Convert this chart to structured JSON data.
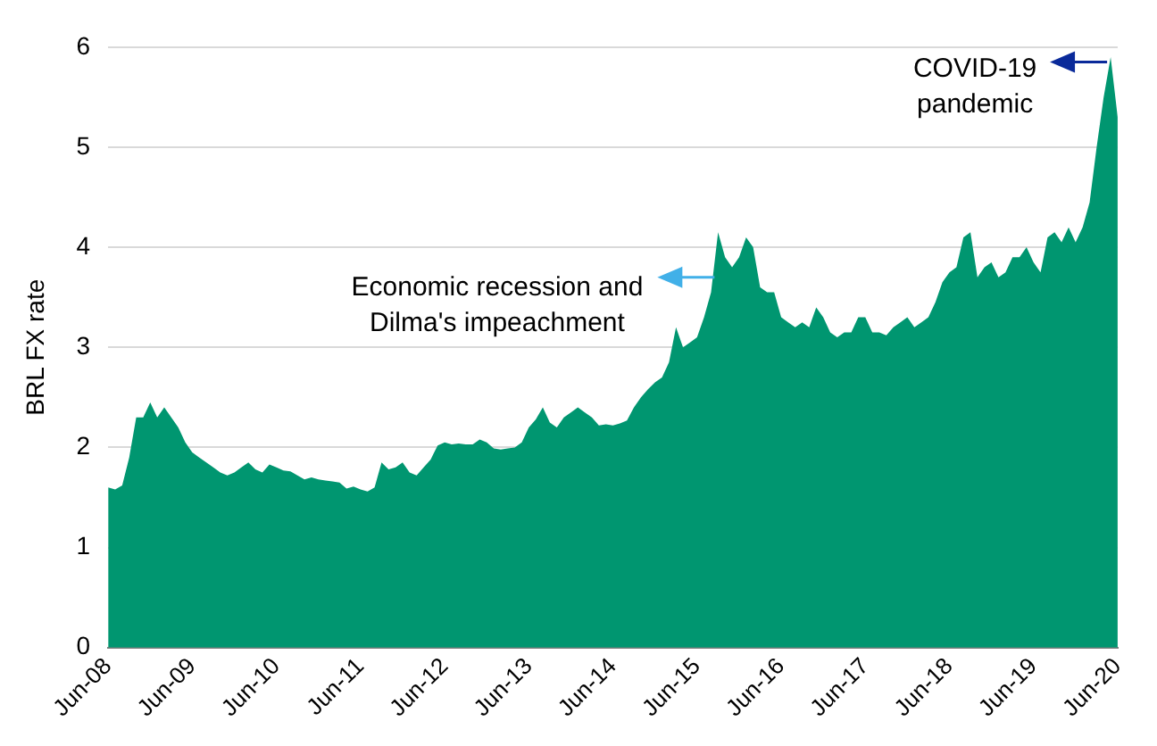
{
  "chart_data": {
    "type": "area",
    "ylabel": "BRL FX rate",
    "x": [
      "2008-06",
      "2008-07",
      "2008-08",
      "2008-09",
      "2008-10",
      "2008-11",
      "2008-12",
      "2009-01",
      "2009-02",
      "2009-03",
      "2009-04",
      "2009-05",
      "2009-06",
      "2009-07",
      "2009-08",
      "2009-09",
      "2009-10",
      "2009-11",
      "2009-12",
      "2010-01",
      "2010-02",
      "2010-03",
      "2010-04",
      "2010-05",
      "2010-06",
      "2010-07",
      "2010-08",
      "2010-09",
      "2010-10",
      "2010-11",
      "2010-12",
      "2011-01",
      "2011-02",
      "2011-03",
      "2011-04",
      "2011-05",
      "2011-06",
      "2011-07",
      "2011-08",
      "2011-09",
      "2011-10",
      "2011-11",
      "2011-12",
      "2012-01",
      "2012-02",
      "2012-03",
      "2012-04",
      "2012-05",
      "2012-06",
      "2012-07",
      "2012-08",
      "2012-09",
      "2012-10",
      "2012-11",
      "2012-12",
      "2013-01",
      "2013-02",
      "2013-03",
      "2013-04",
      "2013-05",
      "2013-06",
      "2013-07",
      "2013-08",
      "2013-09",
      "2013-10",
      "2013-11",
      "2013-12",
      "2014-01",
      "2014-02",
      "2014-03",
      "2014-04",
      "2014-05",
      "2014-06",
      "2014-07",
      "2014-08",
      "2014-09",
      "2014-10",
      "2014-11",
      "2014-12",
      "2015-01",
      "2015-02",
      "2015-03",
      "2015-04",
      "2015-05",
      "2015-06",
      "2015-07",
      "2015-08",
      "2015-09",
      "2015-10",
      "2015-11",
      "2015-12",
      "2016-01",
      "2016-02",
      "2016-03",
      "2016-04",
      "2016-05",
      "2016-06",
      "2016-07",
      "2016-08",
      "2016-09",
      "2016-10",
      "2016-11",
      "2016-12",
      "2017-01",
      "2017-02",
      "2017-03",
      "2017-04",
      "2017-05",
      "2017-06",
      "2017-07",
      "2017-08",
      "2017-09",
      "2017-10",
      "2017-11",
      "2017-12",
      "2018-01",
      "2018-02",
      "2018-03",
      "2018-04",
      "2018-05",
      "2018-06",
      "2018-07",
      "2018-08",
      "2018-09",
      "2018-10",
      "2018-11",
      "2018-12",
      "2019-01",
      "2019-02",
      "2019-03",
      "2019-04",
      "2019-05",
      "2019-06",
      "2019-07",
      "2019-08",
      "2019-09",
      "2019-10",
      "2019-11",
      "2019-12",
      "2020-01",
      "2020-02",
      "2020-03",
      "2020-04",
      "2020-05",
      "2020-06"
    ],
    "series": [
      {
        "color": "#009670",
        "values": [
          1.6,
          1.58,
          1.62,
          1.9,
          2.3,
          2.3,
          2.45,
          2.3,
          2.4,
          2.3,
          2.2,
          2.05,
          1.95,
          1.9,
          1.85,
          1.8,
          1.75,
          1.72,
          1.75,
          1.8,
          1.85,
          1.78,
          1.75,
          1.83,
          1.8,
          1.77,
          1.76,
          1.72,
          1.68,
          1.7,
          1.68,
          1.67,
          1.66,
          1.65,
          1.59,
          1.61,
          1.58,
          1.56,
          1.6,
          1.85,
          1.78,
          1.8,
          1.85,
          1.75,
          1.72,
          1.8,
          1.88,
          2.02,
          2.05,
          2.03,
          2.04,
          2.03,
          2.03,
          2.08,
          2.05,
          1.99,
          1.98,
          1.99,
          2.0,
          2.05,
          2.2,
          2.28,
          2.4,
          2.25,
          2.2,
          2.3,
          2.35,
          2.4,
          2.35,
          2.3,
          2.22,
          2.23,
          2.22,
          2.24,
          2.27,
          2.4,
          2.5,
          2.58,
          2.65,
          2.7,
          2.85,
          3.2,
          3.0,
          3.05,
          3.1,
          3.3,
          3.55,
          4.15,
          3.9,
          3.8,
          3.9,
          4.1,
          4.0,
          3.6,
          3.55,
          3.55,
          3.3,
          3.25,
          3.2,
          3.25,
          3.2,
          3.4,
          3.3,
          3.15,
          3.1,
          3.15,
          3.15,
          3.3,
          3.3,
          3.15,
          3.15,
          3.12,
          3.2,
          3.25,
          3.3,
          3.2,
          3.25,
          3.3,
          3.45,
          3.65,
          3.75,
          3.8,
          4.1,
          4.15,
          3.7,
          3.8,
          3.85,
          3.7,
          3.75,
          3.9,
          3.9,
          4.0,
          3.85,
          3.75,
          4.1,
          4.15,
          4.05,
          4.2,
          4.05,
          4.2,
          4.45,
          5.0,
          5.5,
          5.9,
          5.3
        ]
      }
    ],
    "xlim": [
      "2008-06",
      "2020-06"
    ],
    "xticks": [
      {
        "value": "2008-06",
        "label": "Jun-08"
      },
      {
        "value": "2009-06",
        "label": "Jun-09"
      },
      {
        "value": "2010-06",
        "label": "Jun-10"
      },
      {
        "value": "2011-06",
        "label": "Jun-11"
      },
      {
        "value": "2012-06",
        "label": "Jun-12"
      },
      {
        "value": "2013-06",
        "label": "Jun-13"
      },
      {
        "value": "2014-06",
        "label": "Jun-14"
      },
      {
        "value": "2015-06",
        "label": "Jun-15"
      },
      {
        "value": "2016-06",
        "label": "Jun-16"
      },
      {
        "value": "2017-06",
        "label": "Jun-17"
      },
      {
        "value": "2018-06",
        "label": "Jun-18"
      },
      {
        "value": "2019-06",
        "label": "Jun-19"
      },
      {
        "value": "2020-06",
        "label": "Jun-20"
      }
    ],
    "ylim": [
      0,
      6
    ],
    "yticks": [
      0,
      1,
      2,
      3,
      4,
      5,
      6
    ],
    "grid": "y",
    "legend": false,
    "annotations": [
      {
        "text": "Economic recession and\nDilma's impeachment",
        "x": "2015-09",
        "y": 3.7
      },
      {
        "text": "COVID-19\npandemic",
        "x": "2020-05",
        "y": 5.85
      }
    ]
  }
}
